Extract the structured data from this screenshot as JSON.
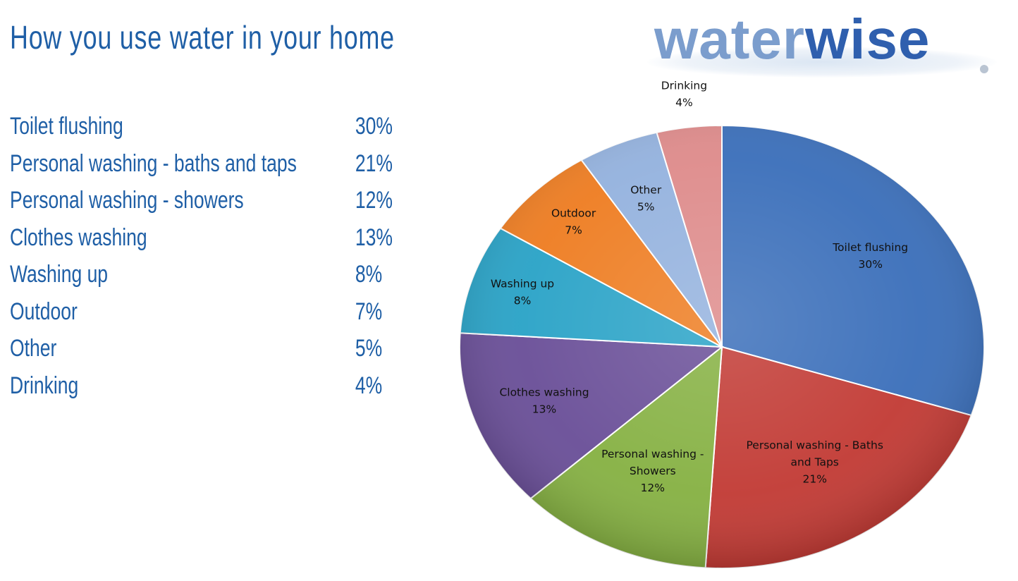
{
  "title": "How you use water in your home",
  "logo": {
    "part1": "water",
    "part2": "wise",
    "accent_light": "#7b9dcd",
    "accent_dark": "#2f5fae"
  },
  "usage_list": [
    {
      "label": "Toilet flushing",
      "value": "30%"
    },
    {
      "label": "Personal washing - baths and taps",
      "value": "21%"
    },
    {
      "label": "Personal washing - showers",
      "value": "12%"
    },
    {
      "label": "Clothes washing",
      "value": "13%"
    },
    {
      "label": "Washing up",
      "value": "8%"
    },
    {
      "label": "Outdoor",
      "value": "7%"
    },
    {
      "label": "Other",
      "value": "5%"
    },
    {
      "label": "Drinking",
      "value": "4%"
    }
  ],
  "chart_data": {
    "type": "pie",
    "title": "",
    "start": "12 o'clock, clockwise",
    "slices": [
      {
        "label": [
          "Toilet flushing"
        ],
        "value": 30,
        "pct": "30%",
        "color": "#3b6fba"
      },
      {
        "label": [
          "Personal washing - Baths",
          "and Taps"
        ],
        "value": 21,
        "pct": "21%",
        "color": "#c23b35"
      },
      {
        "label": [
          "Personal washing -",
          "Showers"
        ],
        "value": 12,
        "pct": "12%",
        "color": "#86b143"
      },
      {
        "label": [
          "Clothes washing"
        ],
        "value": 13,
        "pct": "13%",
        "color": "#6a4f98"
      },
      {
        "label": [
          "Washing up"
        ],
        "value": 8,
        "pct": "8%",
        "color": "#2aa3c7"
      },
      {
        "label": [
          "Outdoor"
        ],
        "value": 7,
        "pct": "7%",
        "color": "#ee7d22"
      },
      {
        "label": [
          "Other"
        ],
        "value": 5,
        "pct": "5%",
        "color": "#94b2de"
      },
      {
        "label": [
          "Drinking"
        ],
        "value": 4,
        "pct": "4%",
        "color": "#de8b8b"
      }
    ]
  }
}
